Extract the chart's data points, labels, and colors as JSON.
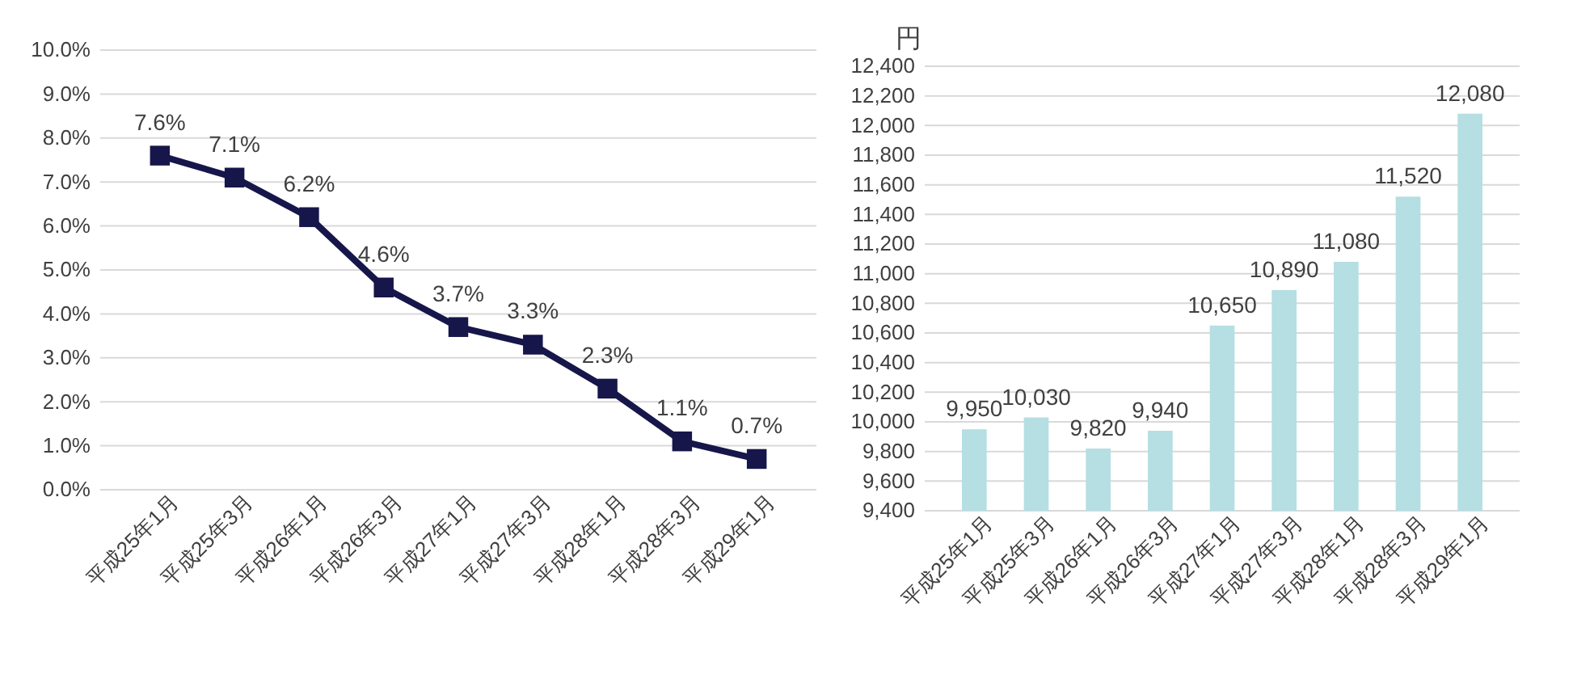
{
  "chart_data": [
    {
      "type": "line",
      "categories": [
        "平成25年1月",
        "平成25年3月",
        "平成26年1月",
        "平成26年3月",
        "平成27年1月",
        "平成27年3月",
        "平成28年1月",
        "平成28年3月",
        "平成29年1月"
      ],
      "series": [
        {
          "color": "#16164a",
          "values": [
            7.6,
            7.1,
            6.2,
            4.6,
            3.7,
            3.3,
            2.3,
            1.1,
            0.7
          ],
          "value_labels": [
            "7.6%",
            "7.1%",
            "6.2%",
            "4.6%",
            "3.7%",
            "3.3%",
            "2.3%",
            "1.1%",
            "0.7%"
          ]
        }
      ],
      "ylim": [
        0,
        10
      ],
      "yticks": [
        {
          "value": 0,
          "label": "0.0%"
        },
        {
          "value": 1,
          "label": "1.0%"
        },
        {
          "value": 2,
          "label": "2.0%"
        },
        {
          "value": 3,
          "label": "3.0%"
        },
        {
          "value": 4,
          "label": "4.0%"
        },
        {
          "value": 5,
          "label": "5.0%"
        },
        {
          "value": 6,
          "label": "6.0%"
        },
        {
          "value": 7,
          "label": "7.0%"
        },
        {
          "value": 8,
          "label": "8.0%"
        },
        {
          "value": 9,
          "label": "9.0%"
        },
        {
          "value": 10,
          "label": "10.0%"
        }
      ],
      "grid": "y",
      "marker": "square"
    },
    {
      "type": "bar",
      "ylabel": "円",
      "categories": [
        "平成25年1月",
        "平成25年3月",
        "平成26年1月",
        "平成26年3月",
        "平成27年1月",
        "平成27年3月",
        "平成28年1月",
        "平成28年3月",
        "平成29年1月"
      ],
      "series": [
        {
          "color": "#b5dfe2",
          "values": [
            9950,
            10030,
            9820,
            9940,
            10650,
            10890,
            11080,
            11520,
            12080
          ],
          "value_labels": [
            "9,950",
            "10,030",
            "9,820",
            "9,940",
            "10,650",
            "10,890",
            "11,080",
            "11,520",
            "12,080"
          ]
        }
      ],
      "ylim": [
        9400,
        12400
      ],
      "yticks": [
        {
          "value": 9400,
          "label": "9,400"
        },
        {
          "value": 9600,
          "label": "9,600"
        },
        {
          "value": 9800,
          "label": "9,800"
        },
        {
          "value": 10000,
          "label": "10,000"
        },
        {
          "value": 10200,
          "label": "10,200"
        },
        {
          "value": 10400,
          "label": "10,400"
        },
        {
          "value": 10600,
          "label": "10,600"
        },
        {
          "value": 10800,
          "label": "10,800"
        },
        {
          "value": 11000,
          "label": "11,000"
        },
        {
          "value": 11200,
          "label": "11,200"
        },
        {
          "value": 11400,
          "label": "11,400"
        },
        {
          "value": 11600,
          "label": "11,600"
        },
        {
          "value": 11800,
          "label": "11,800"
        },
        {
          "value": 12000,
          "label": "12,000"
        },
        {
          "value": 12200,
          "label": "12,200"
        },
        {
          "value": 12400,
          "label": "12,400"
        }
      ],
      "grid": "y"
    }
  ]
}
